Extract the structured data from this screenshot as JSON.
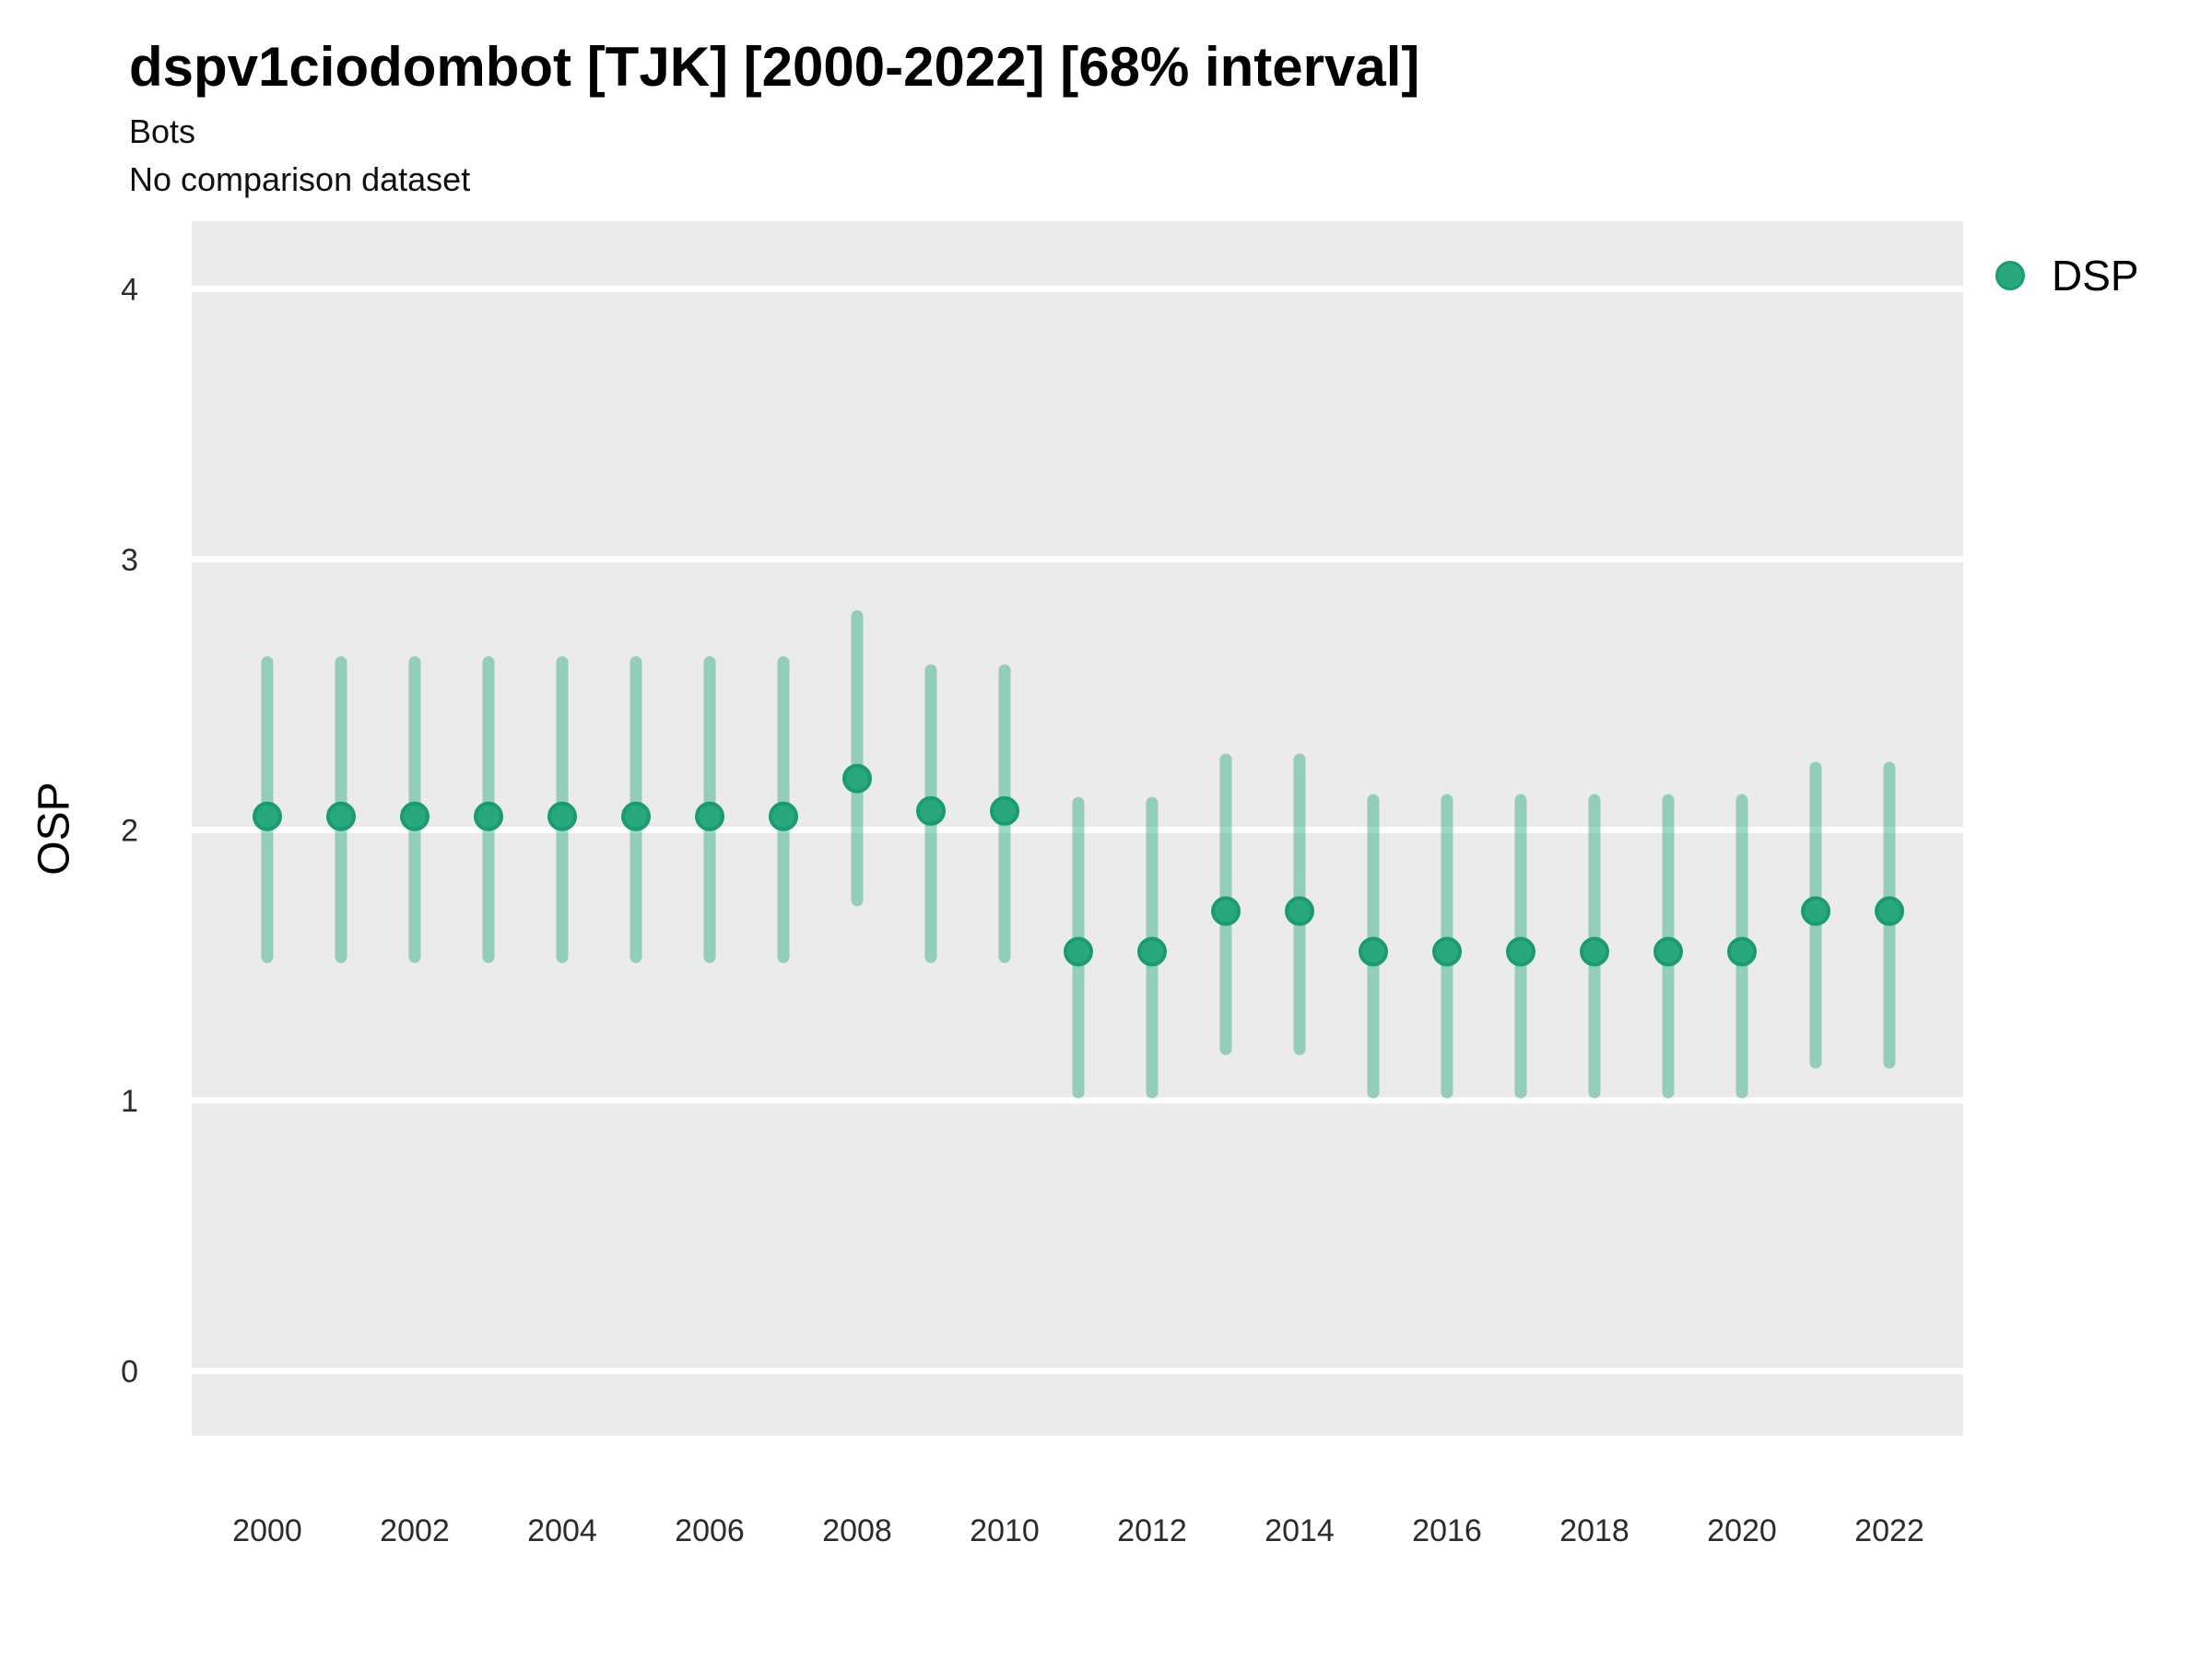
{
  "header": {
    "title": "dspv1ciodombot [TJK] [2000-2022] [68% interval]",
    "subtitle1": "Bots",
    "subtitle2": "No comparison dataset"
  },
  "legend": {
    "label": "DSP"
  },
  "axes": {
    "y_label": "OSP"
  },
  "colors": {
    "panel_bg": "#ebebeb",
    "gridline": "#ffffff",
    "interval_bar": "rgba(42,168,125,0.45)",
    "point_fill": "#2aa87d",
    "point_stroke": "#1b9c70",
    "tick_text": "#2b2b2b",
    "title_text": "#000000"
  },
  "chart_data": {
    "type": "scatter",
    "title": "dspv1ciodombot [TJK] [2000-2022] [68% interval]",
    "subtitle": "Bots",
    "note": "No comparison dataset",
    "xlabel": "",
    "ylabel": "OSP",
    "ylim": [
      -0.24,
      4.25
    ],
    "y_ticks": [
      0,
      1,
      2,
      3,
      4
    ],
    "x_ticks": [
      2000,
      2002,
      2004,
      2006,
      2008,
      2010,
      2012,
      2014,
      2016,
      2018,
      2020,
      2022
    ],
    "grid": "horizontal major gridlines, white on gray panel",
    "legend_position": "top-right",
    "interval_label": "68% interval",
    "series": [
      {
        "name": "DSP",
        "marker": "filled-circle-with-interval-bar",
        "points": [
          {
            "year": 2000,
            "value": 2.05,
            "lo": 1.53,
            "hi": 2.62
          },
          {
            "year": 2001,
            "value": 2.05,
            "lo": 1.53,
            "hi": 2.62
          },
          {
            "year": 2002,
            "value": 2.05,
            "lo": 1.53,
            "hi": 2.62
          },
          {
            "year": 2003,
            "value": 2.05,
            "lo": 1.53,
            "hi": 2.62
          },
          {
            "year": 2004,
            "value": 2.05,
            "lo": 1.53,
            "hi": 2.62
          },
          {
            "year": 2005,
            "value": 2.05,
            "lo": 1.53,
            "hi": 2.62
          },
          {
            "year": 2006,
            "value": 2.05,
            "lo": 1.53,
            "hi": 2.62
          },
          {
            "year": 2007,
            "value": 2.05,
            "lo": 1.53,
            "hi": 2.62
          },
          {
            "year": 2008,
            "value": 2.19,
            "lo": 1.74,
            "hi": 2.79
          },
          {
            "year": 2009,
            "value": 2.07,
            "lo": 1.53,
            "hi": 2.59
          },
          {
            "year": 2010,
            "value": 2.07,
            "lo": 1.53,
            "hi": 2.59
          },
          {
            "year": 2011,
            "value": 1.55,
            "lo": 1.03,
            "hi": 2.1
          },
          {
            "year": 2012,
            "value": 1.55,
            "lo": 1.03,
            "hi": 2.1
          },
          {
            "year": 2013,
            "value": 1.7,
            "lo": 1.19,
            "hi": 2.26
          },
          {
            "year": 2014,
            "value": 1.7,
            "lo": 1.19,
            "hi": 2.26
          },
          {
            "year": 2015,
            "value": 1.55,
            "lo": 1.03,
            "hi": 2.11
          },
          {
            "year": 2016,
            "value": 1.55,
            "lo": 1.03,
            "hi": 2.11
          },
          {
            "year": 2017,
            "value": 1.55,
            "lo": 1.03,
            "hi": 2.11
          },
          {
            "year": 2018,
            "value": 1.55,
            "lo": 1.03,
            "hi": 2.11
          },
          {
            "year": 2019,
            "value": 1.55,
            "lo": 1.03,
            "hi": 2.11
          },
          {
            "year": 2020,
            "value": 1.55,
            "lo": 1.03,
            "hi": 2.11
          },
          {
            "year": 2021,
            "value": 1.7,
            "lo": 1.14,
            "hi": 2.23
          },
          {
            "year": 2022,
            "value": 1.7,
            "lo": 1.14,
            "hi": 2.23
          }
        ]
      }
    ]
  }
}
